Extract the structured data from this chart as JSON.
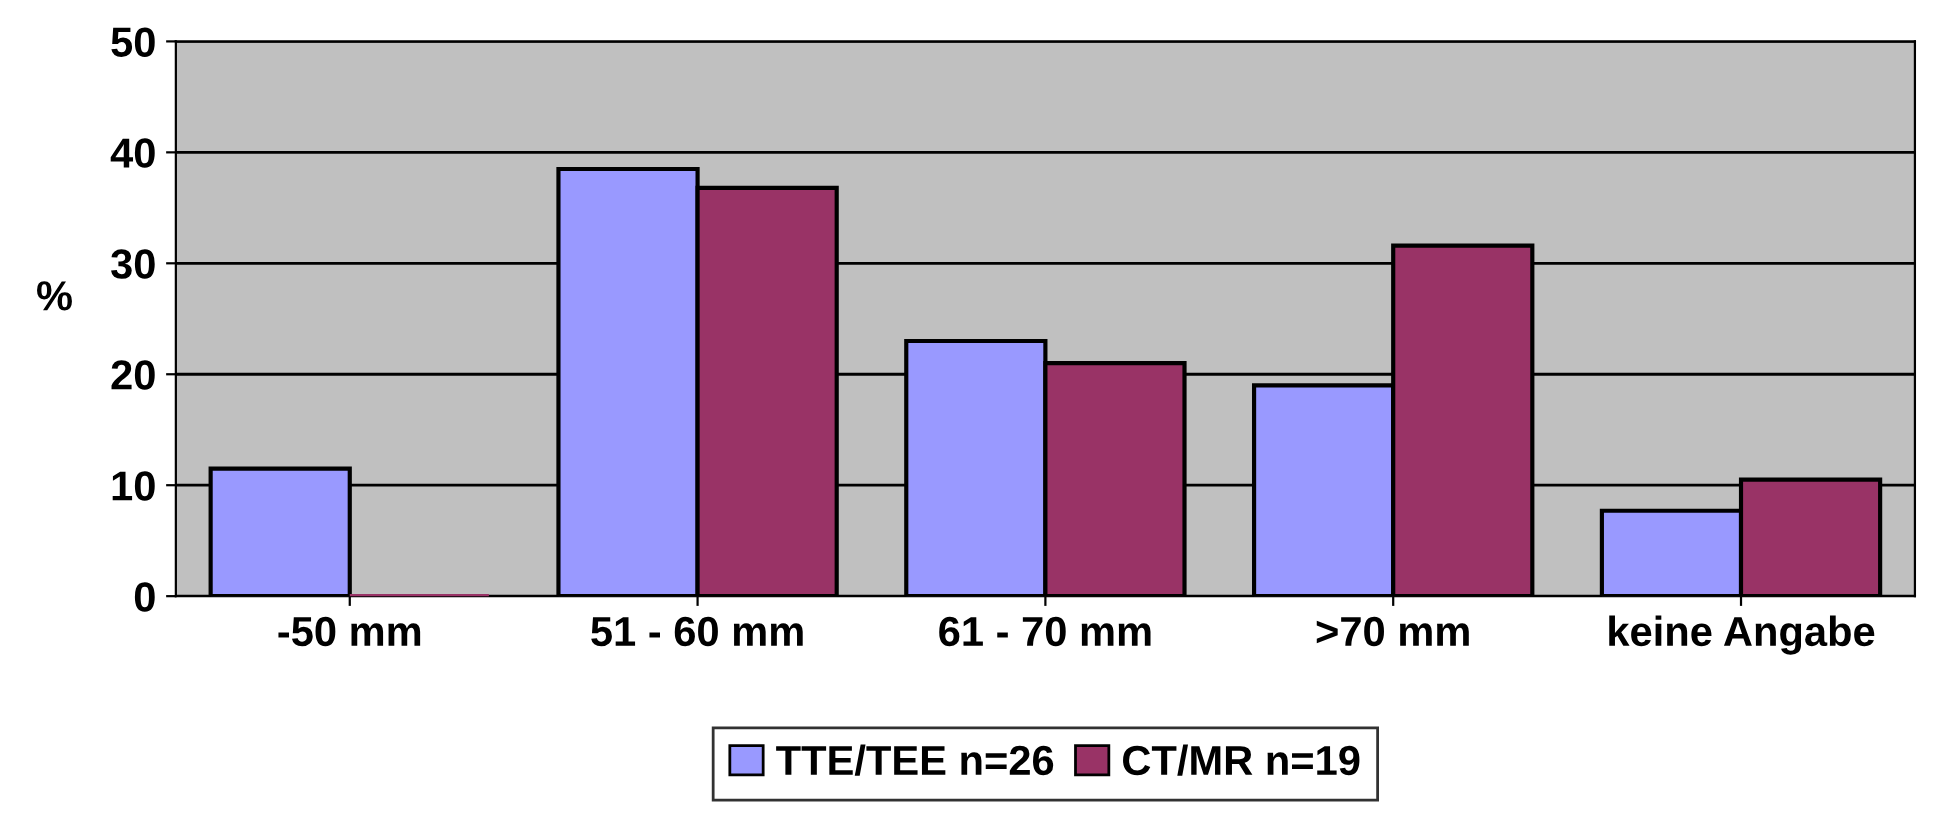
{
  "chart_data": {
    "type": "bar",
    "ylabel": "%",
    "categories": [
      "-50 mm",
      "51 - 60 mm",
      "61 - 70 mm",
      ">70 mm",
      "keine Angabe"
    ],
    "series": [
      {
        "name": "TTE/TEE n=26",
        "color": "#9999ff",
        "values": [
          11.5,
          38.5,
          23,
          19,
          7.7
        ]
      },
      {
        "name": "CT/MR n=19",
        "color": "#993366",
        "values": [
          0,
          36.8,
          21,
          31.6,
          10.5
        ]
      }
    ],
    "ylim": [
      0,
      50
    ],
    "yticks": [
      0,
      10,
      20,
      30,
      40,
      50
    ],
    "grid": "y",
    "legend": "bottom"
  }
}
